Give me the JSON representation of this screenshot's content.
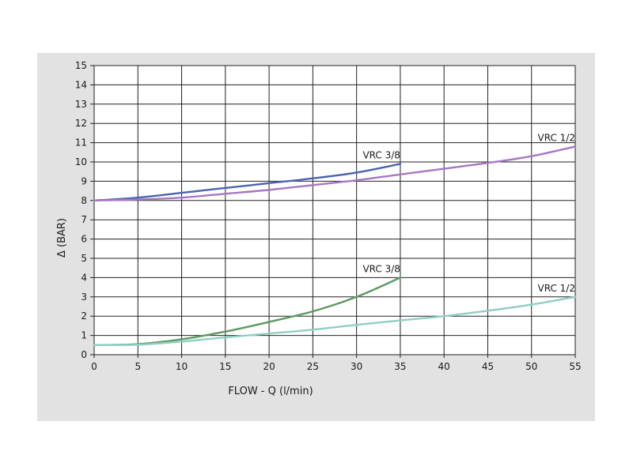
{
  "chart_data": {
    "type": "line",
    "xlabel": "FLOW - Q (l/min)",
    "ylabel": "Δ (BAR)",
    "xlim": [
      0,
      55
    ],
    "ylim": [
      0,
      15
    ],
    "x_ticks": [
      0,
      5,
      10,
      15,
      20,
      25,
      30,
      35,
      40,
      45,
      50,
      55
    ],
    "y_ticks": [
      0,
      1,
      2,
      3,
      4,
      5,
      6,
      7,
      8,
      9,
      10,
      11,
      12,
      13,
      14,
      15
    ],
    "grid": true,
    "series": [
      {
        "name": "VRC 3/8",
        "color": "#4a63b3",
        "x": [
          0,
          5,
          10,
          15,
          20,
          25,
          30,
          35
        ],
        "y": [
          8.0,
          8.15,
          8.4,
          8.65,
          8.9,
          9.15,
          9.45,
          9.9
        ]
      },
      {
        "name": "VRC 1/2",
        "color": "#a678c4",
        "x": [
          0,
          5,
          10,
          15,
          20,
          25,
          30,
          35,
          40,
          45,
          50,
          55
        ],
        "y": [
          8.0,
          8.05,
          8.15,
          8.35,
          8.55,
          8.8,
          9.05,
          9.35,
          9.65,
          9.95,
          10.3,
          10.8
        ]
      },
      {
        "name": "VRC 3/8",
        "color": "#5e9a62",
        "x": [
          0,
          5,
          10,
          15,
          20,
          25,
          30,
          35
        ],
        "y": [
          0.5,
          0.55,
          0.8,
          1.2,
          1.7,
          2.25,
          3.0,
          4.0
        ]
      },
      {
        "name": "VRC 1/2",
        "color": "#8fcfc4",
        "x": [
          0,
          5,
          10,
          15,
          20,
          25,
          30,
          35,
          40,
          45,
          50,
          55
        ],
        "y": [
          0.5,
          0.52,
          0.68,
          0.9,
          1.1,
          1.3,
          1.55,
          1.78,
          2.0,
          2.28,
          2.6,
          3.0
        ]
      }
    ]
  }
}
